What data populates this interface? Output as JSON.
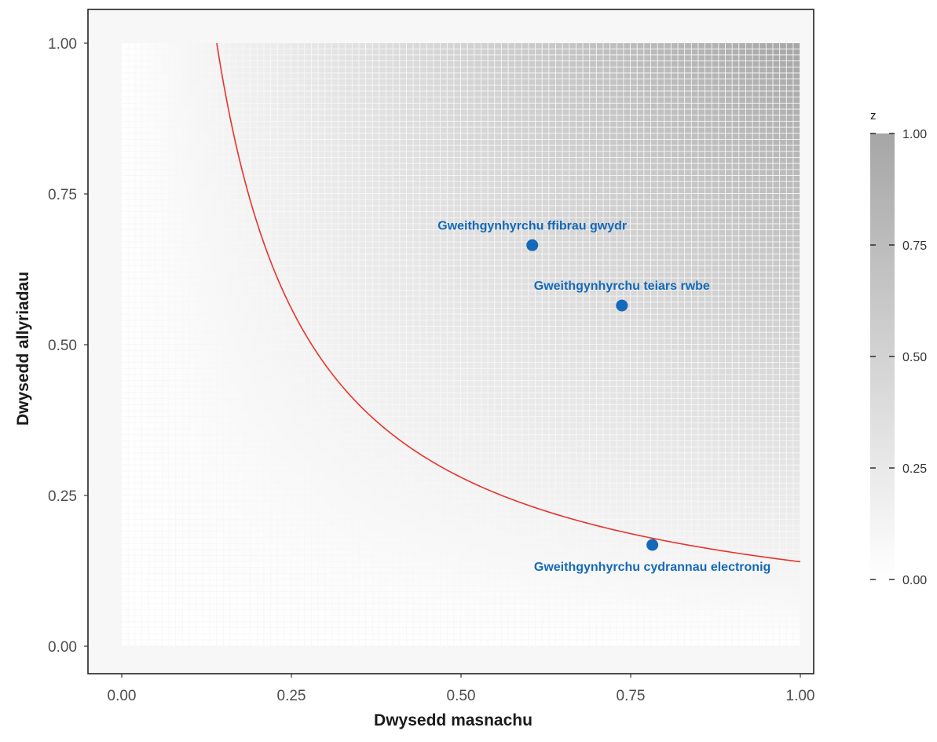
{
  "chart_data": {
    "type": "heatmap",
    "title": "",
    "xlabel": "Dwysedd masnachu",
    "ylabel": "Dwysedd allyriadau",
    "xlim": [
      0,
      1
    ],
    "ylim": [
      0,
      1
    ],
    "x_ticks": [
      "0.00",
      "0.25",
      "0.50",
      "0.75",
      "1.00"
    ],
    "y_ticks": [
      "0.00",
      "0.25",
      "0.50",
      "0.75",
      "1.00"
    ],
    "heatmap": {
      "z_function": "z = x * y",
      "grid_resolution": 0.01,
      "x_range": [
        0,
        1
      ],
      "y_range": [
        0,
        1
      ],
      "color_low": "#ffffff",
      "color_high": "#a6a6a6"
    },
    "legend": {
      "title": "z",
      "placement": "right",
      "ticks": [
        "0.00",
        "0.25",
        "0.50",
        "0.75",
        "1.00"
      ],
      "range": [
        0,
        1
      ]
    },
    "curve": {
      "type": "line",
      "equation": "x * y = 0.14",
      "constant": 0.14,
      "x_range": [
        0.14,
        1
      ],
      "color": "#e8322d"
    },
    "points": [
      {
        "label": "Gweithgynhyrchu ffibrau gwydr",
        "x": 0.605,
        "y": 0.665,
        "label_position": "above"
      },
      {
        "label": "Gweithgynhyrchu teiars rwbe",
        "x": 0.737,
        "y": 0.565,
        "label_position": "above"
      },
      {
        "label": "Gweithgynhyrchu cydrannau electronig",
        "x": 0.782,
        "y": 0.168,
        "label_position": "below"
      }
    ],
    "point_color": "#1469b8",
    "panel_background": "#f7f7f7",
    "grid": false
  }
}
